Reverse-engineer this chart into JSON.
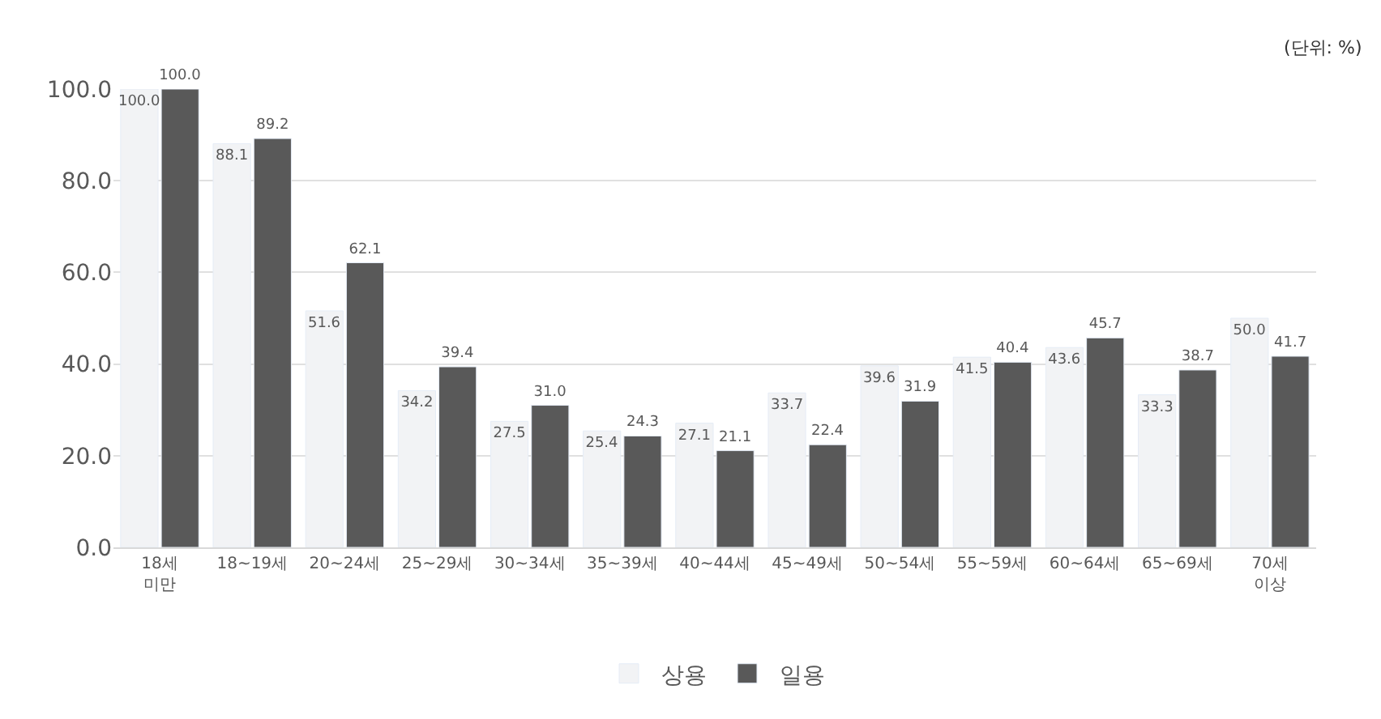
{
  "chart_data": {
    "type": "bar",
    "categories": [
      "18세\n미만",
      "18~19세",
      "20~24세",
      "25~29세",
      "30~34세",
      "35~39세",
      "40~44세",
      "45~49세",
      "50~54세",
      "55~59세",
      "60~64세",
      "65~69세",
      "70세\n이상"
    ],
    "series": [
      {
        "name": "상용",
        "color": "#f2f3f5",
        "values": [
          100.0,
          88.1,
          51.6,
          34.2,
          27.5,
          25.4,
          27.1,
          33.7,
          39.6,
          41.5,
          43.6,
          33.3,
          50.0
        ],
        "value_labels": [
          "100.0",
          "88.1",
          "51.6",
          "34.2",
          "27.5",
          "25.4",
          "27.1",
          "33.7",
          "39.6",
          "41.5",
          "43.6",
          "33.3",
          "50.0"
        ]
      },
      {
        "name": "일용",
        "color": "#595959",
        "values": [
          100.0,
          89.2,
          62.1,
          39.4,
          31.0,
          24.3,
          21.1,
          22.4,
          31.9,
          40.4,
          45.7,
          38.7,
          41.7
        ],
        "value_labels": [
          "100.0",
          "89.2",
          "62.1",
          "39.4",
          "31.0",
          "24.3",
          "21.1",
          "22.4",
          "31.9",
          "40.4",
          "45.7",
          "38.7",
          "41.7"
        ]
      }
    ],
    "ylim": [
      0,
      100
    ],
    "yticks": [
      {
        "value": 0,
        "label": "0.0"
      },
      {
        "value": 20,
        "label": "20.0"
      },
      {
        "value": 40,
        "label": "40.0"
      },
      {
        "value": 60,
        "label": "60.0"
      },
      {
        "value": 80,
        "label": "80.0"
      },
      {
        "value": 100,
        "label": "100.0"
      }
    ],
    "grid": "y",
    "legend": "bottom",
    "annotations": [
      "(단위: %)"
    ]
  }
}
